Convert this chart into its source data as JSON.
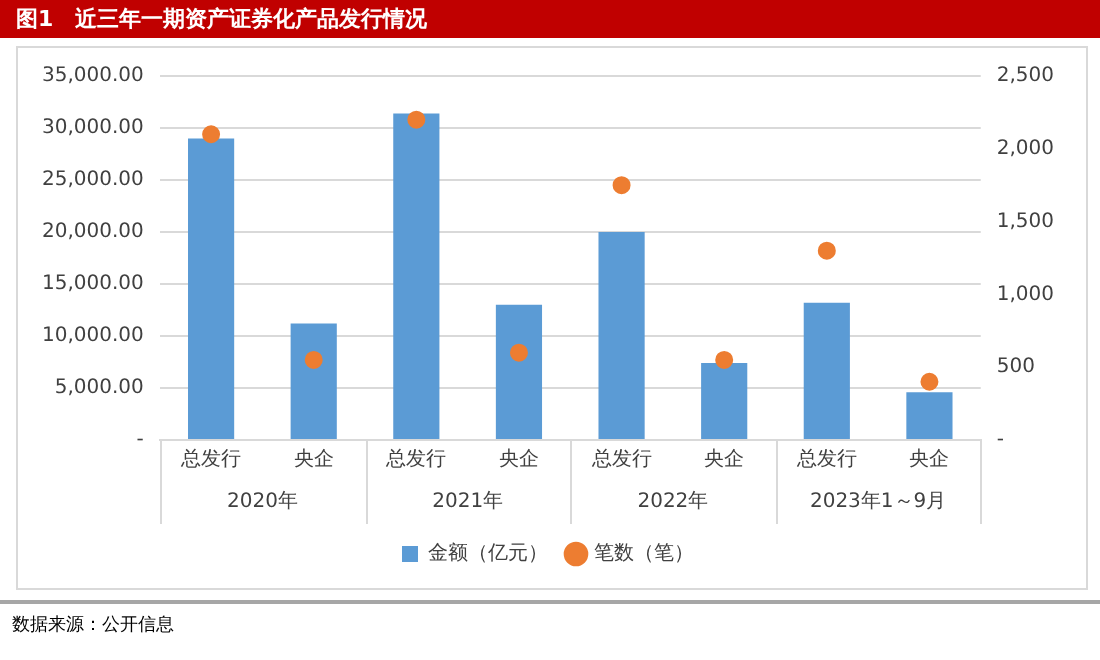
{
  "chart_data": {
    "type": "bar",
    "title": "图1　近三年一期资产证券化产品发行情况",
    "categories": [
      "总发行",
      "央企",
      "总发行",
      "央企",
      "总发行",
      "央企",
      "总发行",
      "央企"
    ],
    "series": [
      {
        "name": "金额（亿元）",
        "type": "bar",
        "color": "#5b9bd5",
        "values": [
          29000,
          11200,
          31400,
          13000,
          20000,
          7400,
          13200,
          4600
        ]
      },
      {
        "name": "笔数（笔）",
        "type": "scatter",
        "axis": "y2",
        "color": "#ed7d31",
        "marker": "circle",
        "values": [
          2100,
          550,
          2200,
          600,
          1750,
          550,
          1300,
          400
        ]
      }
    ],
    "ylim": [
      0,
      35000
    ],
    "yticks": [
      {
        "value": 0,
        "label": "-"
      },
      {
        "value": 5000,
        "label": "5,000.00"
      },
      {
        "value": 10000,
        "label": "10,000.00"
      },
      {
        "value": 15000,
        "label": "15,000.00"
      },
      {
        "value": 20000,
        "label": "20,000.00"
      },
      {
        "value": 25000,
        "label": "25,000.00"
      },
      {
        "value": 30000,
        "label": "30,000.00"
      },
      {
        "value": 35000,
        "label": "35,000.00"
      }
    ],
    "y2lim": [
      0,
      2500
    ],
    "y2ticks": [
      {
        "value": 0,
        "label": "-"
      },
      {
        "value": 500,
        "label": "500"
      },
      {
        "value": 1000,
        "label": "1,000"
      },
      {
        "value": 1500,
        "label": "1,500"
      },
      {
        "value": 2000,
        "label": "2,000"
      },
      {
        "value": 2500,
        "label": "2,500"
      }
    ],
    "grid": "y",
    "legend": "bottom",
    "annotations": [
      "2020年",
      "2021年",
      "2022年",
      "2023年1～9月",
      "数据来源：公开信息"
    ]
  }
}
